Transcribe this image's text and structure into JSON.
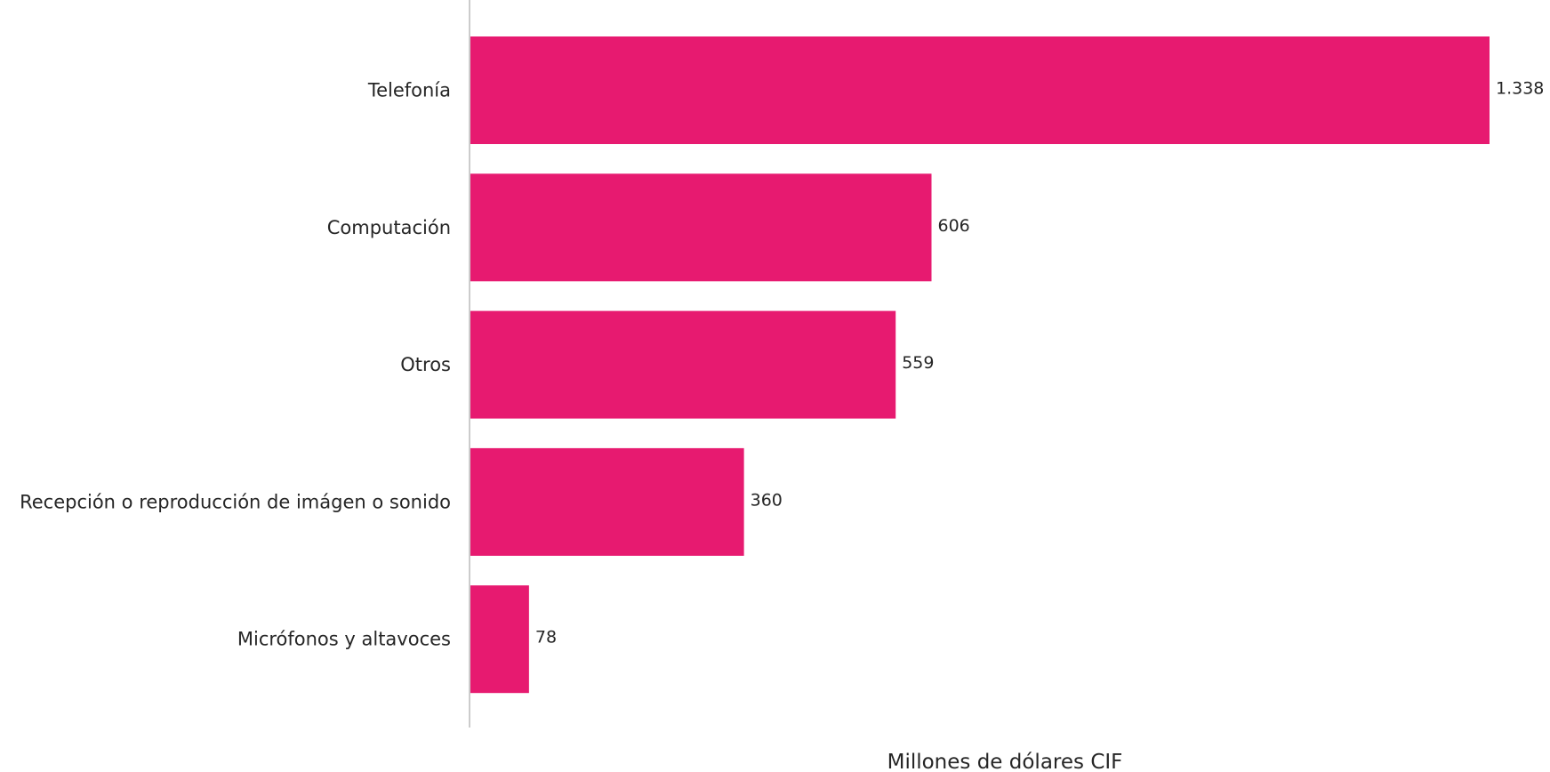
{
  "chart_data": {
    "type": "bar",
    "orientation": "horizontal",
    "categories": [
      "Telefonía",
      "Computación",
      "Otros",
      "Recepción o reproducción de imágen o sonido",
      "Micrófonos y altavoces"
    ],
    "values": [
      1338,
      606,
      559,
      360,
      78
    ],
    "value_labels": [
      "1.338",
      "606",
      "559",
      "360",
      "78"
    ],
    "xlabel": "Millones de dólares CIF",
    "ylabel": "",
    "xlim": [
      0,
      1338
    ],
    "grid": false,
    "bar_color": "#e71a70",
    "axis_color": "#cccccc"
  }
}
